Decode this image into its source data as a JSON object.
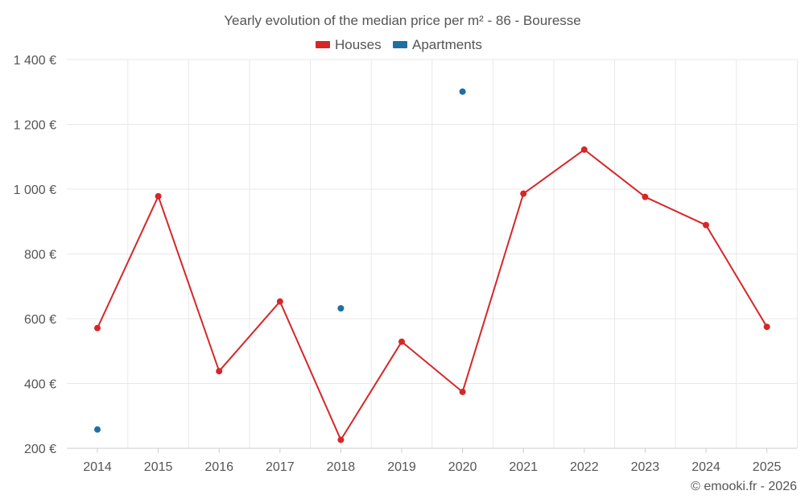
{
  "chart_data": {
    "type": "line",
    "title": "Yearly evolution of the median price per m² - 86 - Bouresse",
    "categories": [
      "2014",
      "2015",
      "2016",
      "2017",
      "2018",
      "2019",
      "2020",
      "2021",
      "2022",
      "2023",
      "2024",
      "2025"
    ],
    "series": [
      {
        "name": "Houses",
        "color": "#d62728",
        "style": "line",
        "values": [
          571,
          978,
          438,
          653,
          226,
          529,
          374,
          986,
          1122,
          976,
          889,
          575
        ]
      },
      {
        "name": "Apartments",
        "color": "#1f6fa3",
        "style": "markers",
        "values": [
          258,
          null,
          null,
          null,
          632,
          null,
          1301,
          null,
          null,
          null,
          null,
          null
        ]
      }
    ],
    "ylim": [
      200,
      1400
    ],
    "yticks": [
      200,
      400,
      600,
      800,
      1000,
      1200,
      1400
    ],
    "ytick_labels": [
      "200 €",
      "400 €",
      "600 €",
      "800 €",
      "1 000 €",
      "1 200 €",
      "1 400 €"
    ],
    "xlabel": "",
    "ylabel": "",
    "legend_position": "top-center",
    "grid": true
  },
  "credit": "© emooki.fr - 2026"
}
